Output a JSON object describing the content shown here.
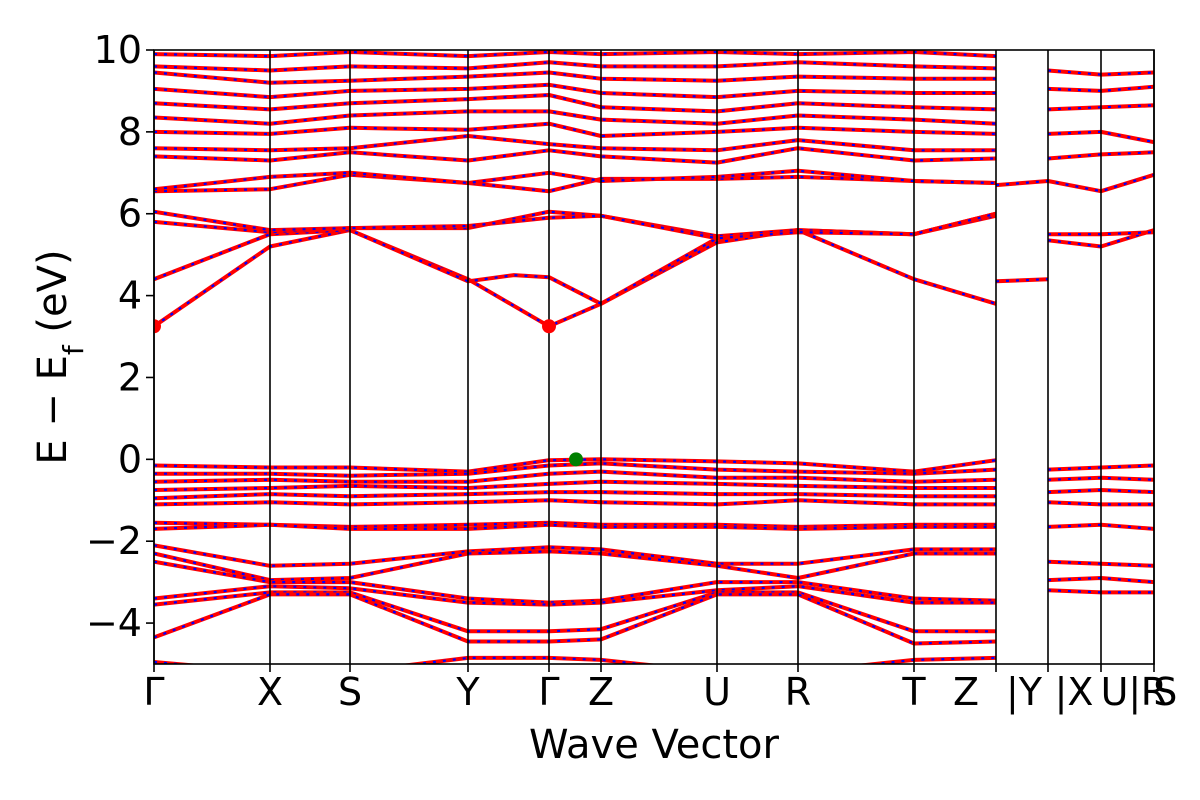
{
  "chart_data": {
    "type": "line",
    "title": "",
    "xlabel": "Wave Vector",
    "ylabel": "E − E_f (eV)",
    "ylabel_parts": {
      "main": "E − E",
      "sub": "f",
      "unit": " (eV)"
    },
    "ylim": [
      -5,
      10
    ],
    "yticks": [
      "−4",
      "−2",
      "0",
      "2",
      "4",
      "6",
      "8",
      "10"
    ],
    "ytick_values": [
      -4,
      -2,
      0,
      2,
      4,
      6,
      8,
      10
    ],
    "xlim": [
      0,
      10
    ],
    "grid": false,
    "kpath": {
      "positions": [
        0,
        1.16,
        1.96,
        3.14,
        3.95,
        4.47,
        5.63,
        6.44,
        7.6,
        8.42,
        8.94,
        9.47,
        10
      ],
      "labels": [
        "Γ",
        "X",
        "S",
        "Y",
        "Γ",
        "Z",
        "U",
        "R",
        "T",
        "Z",
        "|Y",
        "|X",
        "U| S",
        "R"
      ],
      "label_positions": [
        0,
        1.16,
        1.96,
        3.14,
        3.95,
        4.47,
        5.63,
        6.44,
        7.6,
        8.12,
        8.7,
        9.2,
        9.85,
        10
      ]
    },
    "vbm": {
      "x": 4.22,
      "y": 0.0,
      "color": "#008000"
    },
    "cbm": [
      {
        "x": 0.0,
        "y": 3.25,
        "color": "#ff0000"
      },
      {
        "x": 3.95,
        "y": 3.25,
        "color": "#ff0000"
      }
    ],
    "band_color": "#ff0000",
    "band_overlay_color": "#0000ff",
    "bands": [
      {
        "name": "",
        "x": [
          0,
          1.16,
          1.96,
          3.14,
          3.95,
          4.47,
          5.63,
          6.44,
          7.6,
          8.42
        ],
        "y": [
          3.25,
          5.2,
          5.6,
          4.4,
          3.25,
          3.8,
          5.3,
          5.6,
          4.4,
          3.8
        ]
      },
      {
        "name": "",
        "x": [
          0,
          1.16,
          1.96,
          3.14,
          3.6,
          3.95,
          4.47,
          5.63,
          6.44,
          7.6,
          8.42
        ],
        "y": [
          4.4,
          5.5,
          5.6,
          4.35,
          4.5,
          4.45,
          3.8,
          5.4,
          5.6,
          5.5,
          5.95
        ]
      },
      {
        "name": "",
        "x": [
          0,
          1.16,
          1.96,
          3.14,
          3.95,
          4.47,
          5.63,
          6.44,
          7.6,
          8.42
        ],
        "y": [
          5.8,
          5.55,
          5.65,
          5.65,
          6.05,
          5.95,
          5.45,
          5.6,
          5.5,
          6.0
        ]
      },
      {
        "name": "",
        "x": [
          0,
          1.16,
          1.96,
          3.14,
          3.95,
          4.47,
          5.63,
          6.44,
          7.6,
          8.42
        ],
        "y": [
          6.05,
          5.6,
          5.65,
          5.7,
          5.9,
          5.95,
          5.4,
          5.55,
          5.5,
          6.0
        ]
      },
      {
        "name": "",
        "x": [
          0,
          1.16,
          1.96,
          3.14,
          3.95,
          4.47,
          5.63,
          6.44,
          7.6,
          8.42
        ],
        "y": [
          6.55,
          6.6,
          6.95,
          6.75,
          6.55,
          6.85,
          6.85,
          6.9,
          6.8,
          6.75
        ]
      },
      {
        "name": "",
        "x": [
          0,
          1.16,
          1.96,
          3.14,
          3.95,
          4.47,
          5.63,
          6.44,
          7.6,
          8.42
        ],
        "y": [
          6.6,
          6.9,
          7.0,
          6.75,
          7.0,
          6.8,
          6.9,
          7.05,
          6.8,
          6.75
        ]
      },
      {
        "name": "",
        "x": [
          0,
          1.16,
          1.96,
          3.14,
          3.95,
          4.47,
          5.63,
          6.44,
          7.6,
          8.42
        ],
        "y": [
          7.4,
          7.3,
          7.5,
          7.3,
          7.55,
          7.4,
          7.25,
          7.6,
          7.3,
          7.35
        ]
      },
      {
        "name": "",
        "x": [
          0,
          1.16,
          1.96,
          3.14,
          3.95,
          4.47,
          5.63,
          6.44,
          7.6,
          8.42
        ],
        "y": [
          7.6,
          7.55,
          7.6,
          7.9,
          7.7,
          7.6,
          7.55,
          7.8,
          7.55,
          7.55
        ]
      },
      {
        "name": "",
        "x": [
          0,
          1.16,
          1.96,
          3.14,
          3.95,
          4.47,
          5.63,
          6.44,
          7.6,
          8.42
        ],
        "y": [
          8.0,
          7.95,
          8.1,
          8.05,
          8.2,
          7.9,
          8.0,
          8.1,
          8.0,
          7.95
        ]
      },
      {
        "name": "",
        "x": [
          0,
          1.16,
          1.96,
          3.14,
          3.95,
          4.47,
          5.63,
          6.44,
          7.6,
          8.42
        ],
        "y": [
          8.35,
          8.2,
          8.4,
          8.5,
          8.5,
          8.3,
          8.2,
          8.4,
          8.3,
          8.2
        ]
      },
      {
        "name": "",
        "x": [
          0,
          1.16,
          1.96,
          3.14,
          3.95,
          4.47,
          5.63,
          6.44,
          7.6,
          8.42
        ],
        "y": [
          8.7,
          8.55,
          8.7,
          8.8,
          8.9,
          8.6,
          8.5,
          8.7,
          8.6,
          8.55
        ]
      },
      {
        "name": "",
        "x": [
          0,
          1.16,
          1.96,
          3.14,
          3.95,
          4.47,
          5.63,
          6.44,
          7.6,
          8.42
        ],
        "y": [
          9.05,
          8.85,
          9.0,
          9.05,
          9.15,
          8.95,
          8.85,
          9.0,
          8.95,
          8.95
        ]
      },
      {
        "name": "",
        "x": [
          0,
          1.16,
          1.96,
          3.14,
          3.95,
          4.47,
          5.63,
          6.44,
          7.6,
          8.42
        ],
        "y": [
          9.45,
          9.2,
          9.25,
          9.35,
          9.45,
          9.3,
          9.25,
          9.35,
          9.3,
          9.3
        ]
      },
      {
        "name": "",
        "x": [
          0,
          1.16,
          1.96,
          3.14,
          3.95,
          4.47,
          5.63,
          6.44,
          7.6,
          8.42
        ],
        "y": [
          9.6,
          9.5,
          9.6,
          9.55,
          9.7,
          9.6,
          9.6,
          9.7,
          9.6,
          9.55
        ]
      },
      {
        "name": "",
        "x": [
          0,
          1.16,
          1.96,
          3.14,
          3.95,
          4.47,
          5.63,
          6.44,
          7.6,
          8.42
        ],
        "y": [
          9.9,
          9.85,
          9.95,
          9.85,
          9.95,
          9.9,
          9.95,
          9.9,
          9.95,
          9.85
        ]
      },
      {
        "name": "",
        "x": [
          0,
          1.16,
          1.96,
          3.14,
          3.95,
          4.47,
          5.63,
          6.44,
          7.6,
          8.42
        ],
        "y": [
          -0.15,
          -0.2,
          -0.2,
          -0.3,
          -0.02,
          0.0,
          -0.05,
          -0.1,
          -0.3,
          -0.02
        ]
      },
      {
        "name": "",
        "x": [
          0,
          1.16,
          1.96,
          3.14,
          3.95,
          4.47,
          5.63,
          6.44,
          7.6,
          8.42
        ],
        "y": [
          -0.35,
          -0.35,
          -0.4,
          -0.35,
          -0.15,
          -0.1,
          -0.25,
          -0.3,
          -0.35,
          -0.25
        ]
      },
      {
        "name": "",
        "x": [
          0,
          1.16,
          1.96,
          3.14,
          3.95,
          4.47,
          5.63,
          6.44,
          7.6,
          8.42
        ],
        "y": [
          -0.55,
          -0.5,
          -0.55,
          -0.55,
          -0.35,
          -0.3,
          -0.45,
          -0.45,
          -0.55,
          -0.5
        ]
      },
      {
        "name": "",
        "x": [
          0,
          1.16,
          1.96,
          3.14,
          3.95,
          4.47,
          5.63,
          6.44,
          7.6,
          8.42
        ],
        "y": [
          -0.75,
          -0.7,
          -0.65,
          -0.7,
          -0.6,
          -0.55,
          -0.6,
          -0.65,
          -0.7,
          -0.7
        ]
      },
      {
        "name": "",
        "x": [
          0,
          1.16,
          1.96,
          3.14,
          3.95,
          4.47,
          5.63,
          6.44,
          7.6,
          8.42
        ],
        "y": [
          -0.95,
          -0.85,
          -0.9,
          -0.85,
          -0.8,
          -0.8,
          -0.85,
          -0.85,
          -0.9,
          -0.9
        ]
      },
      {
        "name": "",
        "x": [
          0,
          1.16,
          1.96,
          3.14,
          3.95,
          4.47,
          5.63,
          6.44,
          7.6,
          8.42
        ],
        "y": [
          -1.1,
          -1.05,
          -1.1,
          -1.05,
          -1.0,
          -1.05,
          -1.1,
          -1.0,
          -1.1,
          -1.1
        ]
      },
      {
        "name": "",
        "x": [
          0,
          1.16,
          1.96,
          3.14,
          3.95,
          4.47,
          5.63,
          6.44,
          7.6,
          8.42
        ],
        "y": [
          -1.55,
          -1.6,
          -1.65,
          -1.6,
          -1.55,
          -1.6,
          -1.6,
          -1.65,
          -1.6,
          -1.6
        ]
      },
      {
        "name": "",
        "x": [
          0,
          1.16,
          1.96,
          3.14,
          3.95,
          4.47,
          5.63,
          6.44,
          7.6,
          8.42
        ],
        "y": [
          -1.7,
          -1.6,
          -1.7,
          -1.7,
          -1.6,
          -1.65,
          -1.65,
          -1.7,
          -1.65,
          -1.65
        ]
      },
      {
        "name": "",
        "x": [
          0,
          1.16,
          1.96,
          3.14,
          3.95,
          4.47,
          5.63,
          6.44,
          7.6,
          8.42
        ],
        "y": [
          -2.1,
          -2.6,
          -2.55,
          -2.25,
          -2.15,
          -2.2,
          -2.55,
          -2.55,
          -2.2,
          -2.2
        ]
      },
      {
        "name": "",
        "x": [
          0,
          1.16,
          1.96,
          3.14,
          3.95,
          4.47,
          5.63,
          6.44,
          7.6,
          8.42
        ],
        "y": [
          -2.3,
          -2.95,
          -2.9,
          -2.3,
          -2.25,
          -2.3,
          -2.6,
          -2.9,
          -2.3,
          -2.3
        ]
      },
      {
        "name": "",
        "x": [
          0,
          1.16,
          1.96,
          3.14,
          3.95,
          4.47,
          5.63,
          6.44,
          7.6,
          8.42
        ],
        "y": [
          -2.5,
          -3.0,
          -3.0,
          -3.4,
          -3.5,
          -3.45,
          -3.0,
          -3.0,
          -3.4,
          -3.45
        ]
      },
      {
        "name": "",
        "x": [
          0,
          1.16,
          1.96,
          3.14,
          3.95,
          4.47,
          5.63,
          6.44,
          7.6,
          8.42
        ],
        "y": [
          -3.4,
          -3.1,
          -3.15,
          -3.5,
          -3.55,
          -3.5,
          -3.2,
          -3.1,
          -3.5,
          -3.5
        ]
      },
      {
        "name": "",
        "x": [
          0,
          1.16,
          1.96,
          3.14,
          3.95,
          4.47,
          5.63,
          6.44,
          7.6,
          8.42
        ],
        "y": [
          -3.55,
          -3.25,
          -3.25,
          -4.2,
          -4.2,
          -4.15,
          -3.25,
          -3.25,
          -4.2,
          -4.2
        ]
      },
      {
        "name": "",
        "x": [
          0,
          1.16,
          1.96,
          3.14,
          3.95,
          4.47,
          5.63,
          6.44,
          7.6,
          8.42
        ],
        "y": [
          -4.35,
          -3.3,
          -3.3,
          -4.45,
          -4.45,
          -4.4,
          -3.3,
          -3.3,
          -4.5,
          -4.45
        ]
      },
      {
        "name": "",
        "x": [
          0,
          1.16,
          1.96,
          3.14,
          3.95,
          4.47,
          5.63,
          6.44,
          7.6,
          8.42
        ],
        "y": [
          -4.95,
          -5.2,
          -5.2,
          -4.85,
          -4.85,
          -4.9,
          -5.2,
          -5.2,
          -4.9,
          -4.85
        ]
      },
      {
        "name": "",
        "x": [
          8.42,
          8.94
        ],
        "y": [
          4.35,
          4.4
        ]
      },
      {
        "name": "",
        "x": [
          8.42,
          8.94,
          9.47,
          10
        ],
        "y": [
          6.7,
          6.8,
          6.55,
          6.95
        ]
      },
      {
        "name": "",
        "x": [
          8.94,
          9.47,
          10
        ],
        "y": [
          5.35,
          5.2,
          5.6
        ]
      },
      {
        "name": "",
        "x": [
          8.94,
          9.47,
          10
        ],
        "y": [
          5.5,
          5.5,
          5.55
        ]
      },
      {
        "name": "",
        "x": [
          8.94,
          9.47,
          10
        ],
        "y": [
          -0.25,
          -0.2,
          -0.15
        ]
      },
      {
        "name": "",
        "x": [
          8.94,
          9.47,
          10
        ],
        "y": [
          -0.5,
          -0.45,
          -0.5
        ]
      },
      {
        "name": "",
        "x": [
          8.94,
          9.47,
          10
        ],
        "y": [
          -0.8,
          -0.75,
          -0.8
        ]
      },
      {
        "name": "",
        "x": [
          8.94,
          9.47,
          10
        ],
        "y": [
          -1.05,
          -1.1,
          -1.1
        ]
      },
      {
        "name": "",
        "x": [
          8.94,
          9.47,
          10
        ],
        "y": [
          -1.65,
          -1.6,
          -1.7
        ]
      },
      {
        "name": "",
        "x": [
          8.94,
          9.47,
          10
        ],
        "y": [
          -2.5,
          -2.55,
          -2.6
        ]
      },
      {
        "name": "",
        "x": [
          8.94,
          9.47,
          10
        ],
        "y": [
          -2.95,
          -2.9,
          -3.0
        ]
      },
      {
        "name": "",
        "x": [
          8.94,
          9.47,
          10
        ],
        "y": [
          -3.2,
          -3.25,
          -3.25
        ]
      },
      {
        "name": "",
        "x": [
          8.94,
          9.47,
          10
        ],
        "y": [
          7.35,
          7.45,
          7.5
        ]
      },
      {
        "name": "",
        "x": [
          8.94,
          9.47,
          10
        ],
        "y": [
          7.95,
          8.0,
          7.75
        ]
      },
      {
        "name": "",
        "x": [
          8.94,
          9.47,
          10
        ],
        "y": [
          8.55,
          8.6,
          8.65
        ]
      },
      {
        "name": "",
        "x": [
          8.94,
          9.47,
          10
        ],
        "y": [
          9.05,
          9.0,
          9.1
        ]
      },
      {
        "name": "",
        "x": [
          8.94,
          9.47,
          10
        ],
        "y": [
          9.5,
          9.4,
          9.45
        ]
      }
    ]
  }
}
